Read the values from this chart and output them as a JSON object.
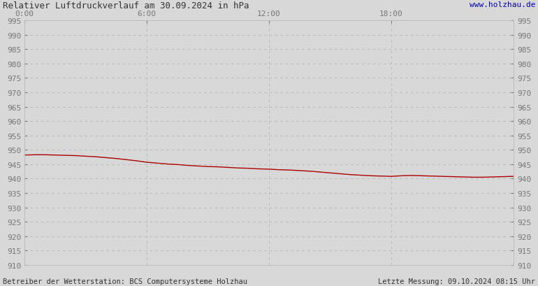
{
  "title": "Relativer Luftdruckverlauf am 30.09.2024 in hPa",
  "url": "www.holzhau.de",
  "footer_left": "Betreiber der Wetterstation: BCS Computersysteme Holzhau",
  "footer_right": "Letzte Messung: 09.10.2024 08:15 Uhr",
  "x_ticks_labels": [
    "0:00",
    "6:00",
    "12:00",
    "18:00"
  ],
  "x_ticks_positions": [
    0,
    360,
    720,
    1080
  ],
  "x_max": 1440,
  "y_min": 910,
  "y_max": 995,
  "y_step": 5,
  "line_color": "#aa0000",
  "bg_color": "#d8d8d8",
  "plot_bg_color": "#d8d8d8",
  "grid_color": "#bbbbbb",
  "text_color": "#777777",
  "title_color": "#333333",
  "url_color": "#0000bb",
  "footer_color": "#333333",
  "pressure_points": [
    [
      0,
      948.2
    ],
    [
      30,
      948.3
    ],
    [
      60,
      948.3
    ],
    [
      90,
      948.2
    ],
    [
      120,
      948.1
    ],
    [
      150,
      948.0
    ],
    [
      180,
      947.8
    ],
    [
      210,
      947.6
    ],
    [
      240,
      947.3
    ],
    [
      270,
      947.0
    ],
    [
      300,
      946.6
    ],
    [
      330,
      946.2
    ],
    [
      360,
      945.7
    ],
    [
      390,
      945.4
    ],
    [
      420,
      945.1
    ],
    [
      450,
      944.9
    ],
    [
      480,
      944.6
    ],
    [
      510,
      944.4
    ],
    [
      540,
      944.2
    ],
    [
      570,
      944.1
    ],
    [
      600,
      943.9
    ],
    [
      630,
      943.7
    ],
    [
      660,
      943.6
    ],
    [
      690,
      943.4
    ],
    [
      720,
      943.3
    ],
    [
      750,
      943.1
    ],
    [
      780,
      943.0
    ],
    [
      810,
      942.8
    ],
    [
      840,
      942.6
    ],
    [
      870,
      942.3
    ],
    [
      900,
      942.0
    ],
    [
      930,
      941.7
    ],
    [
      960,
      941.4
    ],
    [
      990,
      941.2
    ],
    [
      1020,
      941.0
    ],
    [
      1050,
      940.9
    ],
    [
      1080,
      940.8
    ],
    [
      1110,
      941.0
    ],
    [
      1140,
      941.1
    ],
    [
      1170,
      941.0
    ],
    [
      1200,
      940.9
    ],
    [
      1230,
      940.8
    ],
    [
      1260,
      940.7
    ],
    [
      1290,
      940.6
    ],
    [
      1320,
      940.5
    ],
    [
      1350,
      940.5
    ],
    [
      1380,
      940.6
    ],
    [
      1410,
      940.7
    ],
    [
      1440,
      940.8
    ]
  ]
}
